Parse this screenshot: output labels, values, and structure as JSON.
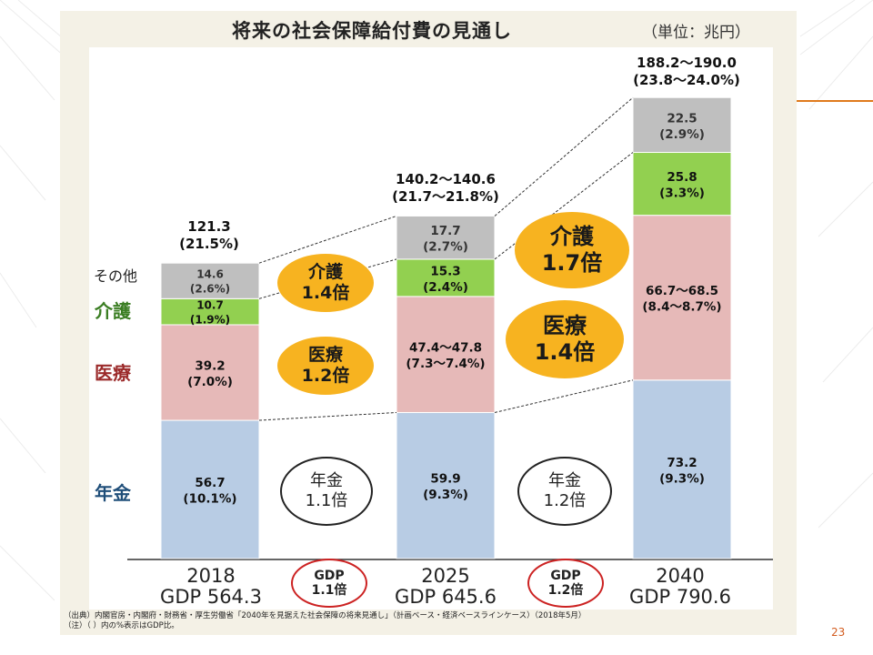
{
  "title": "将来の社会保障給付費の見通し",
  "unit": "（単位：兆円）",
  "page_number": "23",
  "source_lines": [
    "（出典）内閣官房・内閣府・財務省・厚生労働省「2040年を見据えた社会保障の将来見通し」（計画ベース・経済ベースラインケース）（2018年5月）",
    "（注）（ ）内の%表示はGDP比。"
  ],
  "category_labels": {
    "other": "その他",
    "care": "介護",
    "medical": "医療",
    "pension": "年金"
  },
  "growth_bubbles": {
    "care_2025": [
      "介護",
      "1.4倍"
    ],
    "medical_2025": [
      "医療",
      "1.2倍"
    ],
    "care_2040": [
      "介護",
      "1.7倍"
    ],
    "medical_2040": [
      "医療",
      "1.4倍"
    ],
    "pension_2025": [
      "年金",
      "1.1倍"
    ],
    "pension_2040": [
      "年金",
      "1.2倍"
    ],
    "gdp_2025": [
      "GDP",
      "1.1倍"
    ],
    "gdp_2040": [
      "GDP",
      "1.2倍"
    ]
  },
  "colors": {
    "pension": "#b8cce4",
    "medical": "#e6b9b8",
    "care": "#92d050",
    "other": "#bfbfbf",
    "care_text": "#3a7d22",
    "medical_text": "#9b2a2a",
    "pension_text": "#1f4e79",
    "bubble": "#f7b320"
  },
  "chart_data": {
    "type": "bar",
    "stacked": true,
    "title": "将来の社会保障給付費の見通し",
    "units": "兆円",
    "categories": [
      "2018",
      "2025",
      "2040"
    ],
    "gdp_labels": [
      "GDP 564.3",
      "GDP 645.6",
      "GDP 790.6"
    ],
    "totals": [
      [
        "121.3",
        "(21.5%)"
      ],
      [
        "140.2〜140.6",
        "(21.7〜21.8%)"
      ],
      [
        "188.2〜190.0",
        "(23.8〜24.0%)"
      ]
    ],
    "series": [
      {
        "name": "年金",
        "key": "pension",
        "values": [
          56.7,
          59.9,
          73.2
        ],
        "labels": [
          [
            "56.7",
            "(10.1%)"
          ],
          [
            "59.9",
            "(9.3%)"
          ],
          [
            "73.2",
            "(9.3%)"
          ]
        ]
      },
      {
        "name": "医療",
        "key": "medical",
        "values": [
          39.2,
          47.6,
          67.6
        ],
        "labels": [
          [
            "39.2",
            "(7.0%)"
          ],
          [
            "47.4〜47.8",
            "(7.3〜7.4%)"
          ],
          [
            "66.7〜68.5",
            "(8.4〜8.7%)"
          ]
        ]
      },
      {
        "name": "介護",
        "key": "care",
        "values": [
          10.7,
          15.3,
          25.8
        ],
        "labels": [
          [
            "10.7",
            "(1.9%)"
          ],
          [
            "15.3",
            "(2.4%)"
          ],
          [
            "25.8",
            "(3.3%)"
          ]
        ]
      },
      {
        "name": "その他",
        "key": "other",
        "values": [
          14.6,
          17.7,
          22.5
        ],
        "labels": [
          [
            "14.6",
            "(2.6%)"
          ],
          [
            "17.7",
            "(2.7%)"
          ],
          [
            "22.5",
            "(2.9%)"
          ]
        ]
      }
    ]
  }
}
